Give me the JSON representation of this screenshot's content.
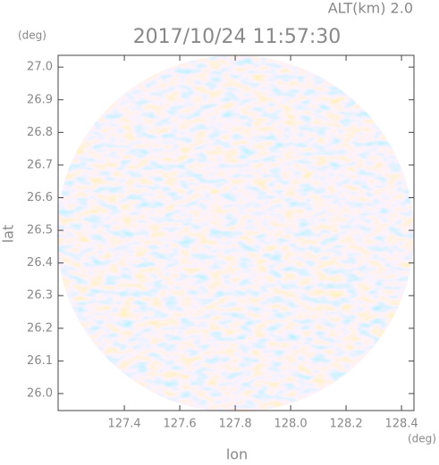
{
  "chart_data": {
    "type": "heatmap",
    "title": "2017/10/24 11:57:30",
    "subtitle": "ALT(km) 2.0",
    "x_label": "lon",
    "x_unit": "(deg)",
    "y_label": "lat",
    "y_unit": "(deg)",
    "xlim": [
      127.161,
      128.445
    ],
    "ylim": [
      25.948,
      27.036
    ],
    "xticks": [
      127.4,
      127.6,
      127.8,
      {
        "value": 128,
        "label": "128.0"
      },
      128.2,
      128.4
    ],
    "yticks": [
      {
        "value": 26,
        "label": "26.0"
      },
      26.1,
      26.2,
      26.3,
      26.4,
      26.5,
      26.6,
      26.7,
      26.8,
      26.9,
      {
        "value": 27,
        "label": "27.0"
      }
    ]
  }
}
